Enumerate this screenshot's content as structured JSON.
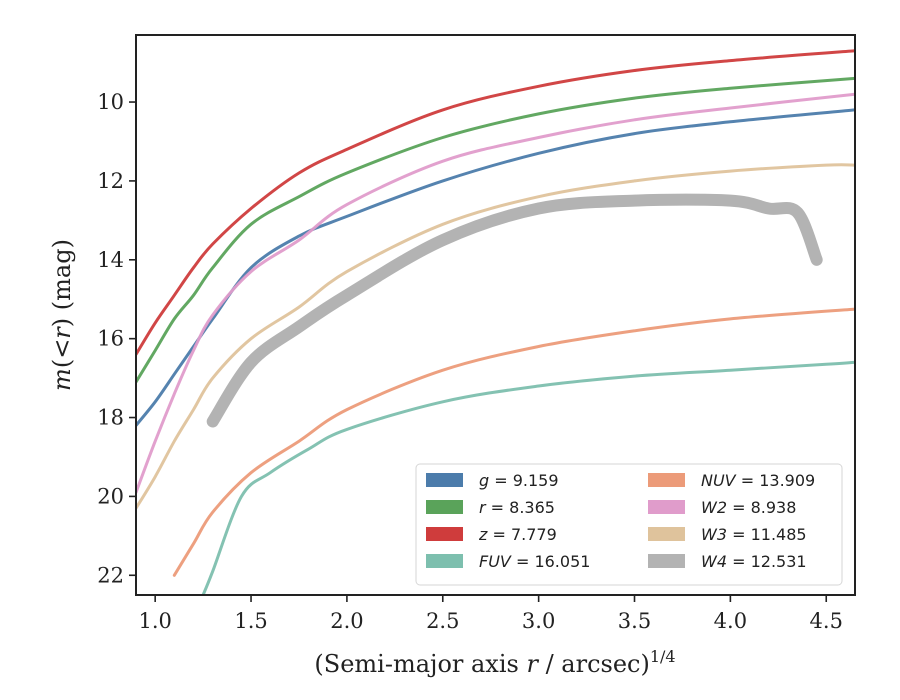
{
  "chart_data": {
    "type": "line",
    "xlabel": "(Semi-major axis r / arcsec)",
    "xlabel_parts": {
      "pre": "(Semi-major axis ",
      "var": "r",
      "post": " / arcsec)",
      "sup": "1/4"
    },
    "ylabel_parts": {
      "m": "m",
      "mid": "(<",
      "r": "r",
      "post": ") (mag)"
    },
    "xlim": [
      0.9,
      4.65
    ],
    "ylim": [
      22.5,
      8.3
    ],
    "y_inverted": true,
    "xticks": [
      1.0,
      1.5,
      2.0,
      2.5,
      3.0,
      3.5,
      4.0,
      4.5
    ],
    "xtick_labels": [
      "1.0",
      "1.5",
      "2.0",
      "2.5",
      "3.0",
      "3.5",
      "4.0",
      "4.5"
    ],
    "yticks": [
      10,
      12,
      14,
      16,
      18,
      20,
      22
    ],
    "ytick_labels": [
      "10",
      "12",
      "14",
      "16",
      "18",
      "20",
      "22"
    ],
    "grid": false,
    "legend_position": "lower-right",
    "legend_columns": 2,
    "series": [
      {
        "band": "g",
        "value_text": "= 9.159",
        "color": "#4c7cab",
        "x": [
          0.9,
          1.0,
          1.1,
          1.2,
          1.3,
          1.5,
          1.75,
          2.0,
          2.5,
          3.0,
          3.5,
          4.0,
          4.65
        ],
        "y": [
          18.2,
          17.6,
          16.9,
          16.2,
          15.5,
          14.2,
          13.4,
          12.9,
          12.0,
          11.3,
          10.8,
          10.5,
          10.2
        ]
      },
      {
        "band": "r",
        "value_text": "= 8.365",
        "color": "#5aa35a",
        "x": [
          0.9,
          1.0,
          1.1,
          1.2,
          1.3,
          1.5,
          1.75,
          2.0,
          2.5,
          3.0,
          3.5,
          4.0,
          4.65
        ],
        "y": [
          17.1,
          16.3,
          15.5,
          14.9,
          14.2,
          13.1,
          12.4,
          11.8,
          10.9,
          10.3,
          9.9,
          9.65,
          9.4
        ]
      },
      {
        "band": "z",
        "value_text": "= 7.779",
        "color": "#cf3c3c",
        "x": [
          0.9,
          1.0,
          1.1,
          1.2,
          1.3,
          1.5,
          1.75,
          2.0,
          2.5,
          3.0,
          3.5,
          4.0,
          4.65
        ],
        "y": [
          16.4,
          15.6,
          14.9,
          14.2,
          13.6,
          12.7,
          11.8,
          11.2,
          10.2,
          9.6,
          9.2,
          8.95,
          8.7
        ]
      },
      {
        "band": "FUV",
        "value_text": "= 16.051",
        "color": "#7dbfae",
        "x": [
          1.25,
          1.3,
          1.45,
          1.6,
          1.8,
          2.0,
          2.5,
          3.0,
          3.5,
          4.0,
          4.5,
          4.65
        ],
        "y": [
          22.5,
          21.9,
          20.0,
          19.4,
          18.8,
          18.3,
          17.6,
          17.2,
          16.95,
          16.8,
          16.65,
          16.6
        ]
      },
      {
        "band": "NUV",
        "value_text": "= 13.909",
        "color": "#ec9b79",
        "x": [
          1.1,
          1.2,
          1.3,
          1.5,
          1.75,
          2.0,
          2.5,
          3.0,
          3.5,
          4.0,
          4.65
        ],
        "y": [
          22.0,
          21.2,
          20.4,
          19.4,
          18.6,
          17.8,
          16.8,
          16.2,
          15.8,
          15.5,
          15.25
        ]
      },
      {
        "band": "W2",
        "value_text": "= 8.938",
        "color": "#e09ccb",
        "x": [
          0.9,
          1.0,
          1.1,
          1.2,
          1.3,
          1.5,
          1.75,
          2.0,
          2.5,
          3.0,
          3.5,
          4.0,
          4.65
        ],
        "y": [
          19.9,
          18.6,
          17.4,
          16.3,
          15.4,
          14.3,
          13.5,
          12.6,
          11.5,
          10.9,
          10.45,
          10.15,
          9.8
        ]
      },
      {
        "band": "W3",
        "value_text": "= 11.485",
        "color": "#dfc39c",
        "x": [
          0.9,
          1.0,
          1.1,
          1.2,
          1.3,
          1.5,
          1.75,
          2.0,
          2.5,
          3.0,
          3.5,
          4.0,
          4.5,
          4.65
        ],
        "y": [
          20.3,
          19.5,
          18.6,
          17.8,
          17.0,
          16.0,
          15.2,
          14.3,
          13.1,
          12.4,
          12.0,
          11.75,
          11.6,
          11.6
        ]
      },
      {
        "band": "W4",
        "value_text": "= 12.531",
        "color": "#b3b3b3",
        "x": [
          1.3,
          1.5,
          1.75,
          2.0,
          2.5,
          3.0,
          3.5,
          4.0,
          4.2,
          4.35,
          4.45
        ],
        "y": [
          18.1,
          16.6,
          15.7,
          14.9,
          13.5,
          12.7,
          12.5,
          12.5,
          12.7,
          12.8,
          14.0
        ]
      }
    ]
  }
}
